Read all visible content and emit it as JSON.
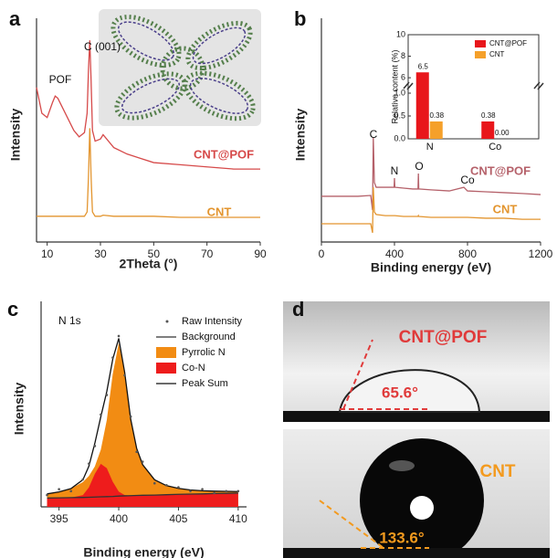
{
  "chart_data": [
    {
      "panel": "a",
      "type": "line",
      "xlabel": "2Theta (°)",
      "ylabel": "Intensity",
      "x": [
        6,
        8,
        10,
        12,
        13,
        14,
        16,
        18,
        20,
        22,
        24,
        25,
        25.5,
        26,
        26.5,
        27,
        28,
        30,
        31,
        35,
        40,
        45,
        50,
        60,
        70,
        80,
        90
      ],
      "series": [
        {
          "name": "CNT@POF",
          "color": "#d64a4a",
          "values": [
            72,
            60,
            58,
            65,
            68,
            67,
            62,
            57,
            52,
            49,
            51,
            60,
            80,
            94,
            75,
            52,
            47,
            48,
            50,
            44,
            41,
            39,
            37,
            36,
            35,
            34,
            34
          ]
        },
        {
          "name": "CNT",
          "color": "#e3952f",
          "values": [
            12,
            12,
            12,
            12,
            12,
            12,
            12,
            12,
            12,
            12,
            12,
            14,
            30,
            53,
            30,
            14,
            12,
            12,
            12.5,
            12,
            12,
            12,
            12,
            11.5,
            11.5,
            11.5,
            11.5
          ]
        }
      ],
      "xlim": [
        6,
        90
      ],
      "xticks": [
        10,
        30,
        50,
        70,
        90
      ],
      "ylim": [
        0,
        100
      ],
      "annotations": [
        "POF",
        "C (001)"
      ]
    },
    {
      "panel": "b",
      "type": "line",
      "xlabel": "Binding energy (eV)",
      "ylabel": "Intensity",
      "x": [
        0,
        100,
        200,
        270,
        280,
        284,
        290,
        300,
        350,
        398,
        400,
        402,
        450,
        500,
        529,
        531,
        533,
        600,
        700,
        780,
        800,
        900,
        1000,
        1100,
        1200
      ],
      "series": [
        {
          "name": "CNT@POF",
          "color": "#b5616a",
          "values": [
            21.3,
            21.3,
            21.3,
            21.7,
            14.9,
            48.9,
            27.7,
            25.5,
            25.5,
            25.5,
            29.8,
            25.5,
            25.1,
            24.7,
            24.7,
            31.9,
            24.7,
            24.3,
            23.8,
            25.5,
            23.8,
            23.4,
            23.0,
            22.6,
            22.1
          ]
        },
        {
          "name": "CNT",
          "color": "#e3952f",
          "values": [
            8.5,
            8.5,
            8.5,
            8.5,
            4.3,
            25.5,
            14.0,
            12.8,
            12.3,
            12.3,
            12.3,
            12.3,
            11.9,
            11.9,
            11.9,
            12.3,
            11.9,
            11.5,
            11.5,
            11.5,
            11.5,
            11.1,
            11.1,
            10.6,
            10.6
          ]
        }
      ],
      "xlim": [
        0,
        1200
      ],
      "xticks": [
        0,
        400,
        800,
        1200
      ],
      "ylim": [
        0,
        100
      ],
      "annotations": [
        "C",
        "N",
        "O",
        "Co"
      ]
    },
    {
      "type": "bar",
      "ylabel": "Relative content (%)",
      "categories": [
        "N",
        "Co"
      ],
      "series": [
        {
          "name": "CNT@POF",
          "color": "#e8161b",
          "values": [
            6.5,
            0.38
          ],
          "value_labels": [
            "6.5",
            "0.38"
          ]
        },
        {
          "name": "CNT",
          "color": "#f5a02a",
          "values": [
            0.38,
            0.0
          ],
          "value_labels": [
            "0.38",
            "0.00"
          ]
        }
      ],
      "ylim": [
        0,
        10
      ],
      "ybreak": [
        1.1,
        5.5
      ],
      "yticks": [
        {
          "value": 0,
          "label": "0.0"
        },
        {
          "value": 0.5,
          "label": "0.5"
        },
        {
          "value": 1,
          "label": "1.0"
        },
        6,
        8,
        10
      ]
    },
    {
      "panel": "c",
      "type": "line",
      "xlabel": "Binding energy (eV)",
      "ylabel": "Intensity",
      "legend": "upper right",
      "annotations": [
        "N 1s"
      ],
      "x": [
        394,
        395,
        396,
        397,
        397.5,
        398,
        398.5,
        399,
        399.5,
        400,
        400.5,
        401,
        401.5,
        402,
        403,
        404,
        405,
        406,
        407,
        408,
        409,
        410
      ],
      "series": [
        {
          "name": "Raw Intensity",
          "color": "#555555",
          "style": "points",
          "values": [
            6,
            9,
            8,
            14,
            22,
            31,
            47,
            57,
            76,
            87,
            67,
            46,
            28,
            23,
            12,
            11,
            10,
            8,
            9,
            7,
            8,
            8
          ]
        },
        {
          "name": "Background",
          "color": "#333333",
          "style": "line",
          "values": [
            4.5,
            4.6,
            4.7,
            4.8,
            4.9,
            5.0,
            5.1,
            5.2,
            5.3,
            5.5,
            5.6,
            5.7,
            5.8,
            5.9,
            6.0,
            6.2,
            6.4,
            6.5,
            6.6,
            6.8,
            6.9,
            7.0
          ]
        },
        {
          "name": "Pyrrolic N",
          "color": "#f28c13",
          "style": "area",
          "values": [
            6.6,
            7.6,
            9.3,
            12.6,
            15.7,
            20.6,
            29.1,
            44.2,
            67.7,
            83.5,
            68.0,
            44.7,
            29.8,
            21.5,
            13.8,
            10.8,
            9.4,
            8.6,
            8.2,
            8.0,
            7.9,
            7.8
          ]
        },
        {
          "name": "Co-N",
          "color": "#ee1c1c",
          "style": "area",
          "values": [
            4.5,
            4.6,
            4.7,
            6.0,
            9.9,
            16.8,
            21.9,
            19.7,
            12.8,
            7.8,
            6.0,
            5.7,
            5.8,
            5.9,
            6.0,
            6.2,
            6.4,
            6.5,
            6.6,
            6.8,
            6.9,
            7.0
          ]
        },
        {
          "name": "Peak Sum",
          "color": "#111111",
          "style": "line",
          "values": [
            6.6,
            7.6,
            9.3,
            13.8,
            20.7,
            32.4,
            45.9,
            58.7,
            75.2,
            85.8,
            68.4,
            44.7,
            29.8,
            21.5,
            13.8,
            10.8,
            9.4,
            8.6,
            8.2,
            8.0,
            7.9,
            7.8
          ]
        }
      ],
      "xlim": [
        393.5,
        410.7
      ],
      "xticks": [
        395,
        400,
        405,
        410
      ],
      "ylim": [
        0,
        100
      ]
    }
  ],
  "photos": {
    "panel": "d",
    "labels": [
      "CNT@POF",
      "65.6°",
      "CNT",
      "133.6°"
    ]
  }
}
